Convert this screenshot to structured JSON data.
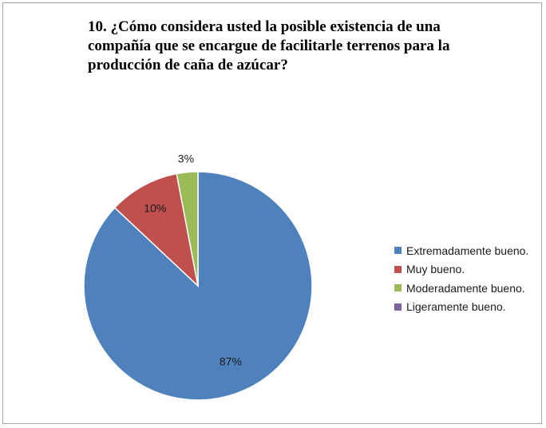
{
  "chart_data": {
    "type": "pie",
    "title": "10. ¿Cómo considera usted la posible existencia de una compañía que se encargue de facilitarle terrenos para la producción de caña de azúcar?",
    "slices": [
      {
        "name": "Extremadamente bueno.",
        "value": 87,
        "label": "87%",
        "color": "#4f81bd"
      },
      {
        "name": "Muy bueno.",
        "value": 10,
        "label": "10%",
        "color": "#c0504d"
      },
      {
        "name": "Moderadamente bueno.",
        "value": 3,
        "label": "3%",
        "color": "#9bbb59"
      },
      {
        "name": "Ligeramente bueno.",
        "value": 0,
        "label": "",
        "color": "#8064a2"
      }
    ],
    "legend_position": "right",
    "start_angle": "12 o'clock",
    "direction": "clockwise"
  }
}
